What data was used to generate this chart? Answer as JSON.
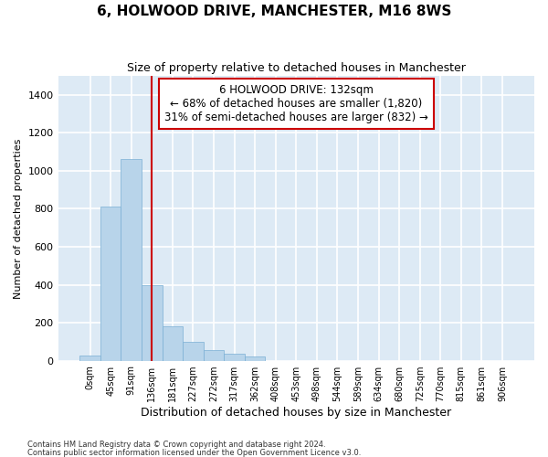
{
  "title": "6, HOLWOOD DRIVE, MANCHESTER, M16 8WS",
  "subtitle": "Size of property relative to detached houses in Manchester",
  "xlabel": "Distribution of detached houses by size in Manchester",
  "ylabel": "Number of detached properties",
  "footnote1": "Contains HM Land Registry data © Crown copyright and database right 2024.",
  "footnote2": "Contains public sector information licensed under the Open Government Licence v3.0.",
  "annotation_line1": "6 HOLWOOD DRIVE: 132sqm",
  "annotation_line2": "← 68% of detached houses are smaller (1,820)",
  "annotation_line3": "31% of semi-detached houses are larger (832) →",
  "bar_color": "#b8d4ea",
  "bar_edge_color": "#7aafd4",
  "background_color": "#ddeaf5",
  "grid_color": "#ffffff",
  "vline_color": "#cc0000",
  "vline_x": 3,
  "annotation_box_edgecolor": "#cc0000",
  "categories": [
    "0sqm",
    "45sqm",
    "91sqm",
    "136sqm",
    "181sqm",
    "227sqm",
    "272sqm",
    "317sqm",
    "362sqm",
    "408sqm",
    "453sqm",
    "498sqm",
    "544sqm",
    "589sqm",
    "634sqm",
    "680sqm",
    "725sqm",
    "770sqm",
    "815sqm",
    "861sqm",
    "906sqm"
  ],
  "values": [
    25,
    810,
    1060,
    400,
    180,
    100,
    55,
    35,
    20,
    0,
    0,
    0,
    0,
    0,
    0,
    0,
    0,
    0,
    0,
    0,
    0
  ],
  "ylim": [
    0,
    1500
  ],
  "yticks": [
    0,
    200,
    400,
    600,
    800,
    1000,
    1200,
    1400
  ]
}
